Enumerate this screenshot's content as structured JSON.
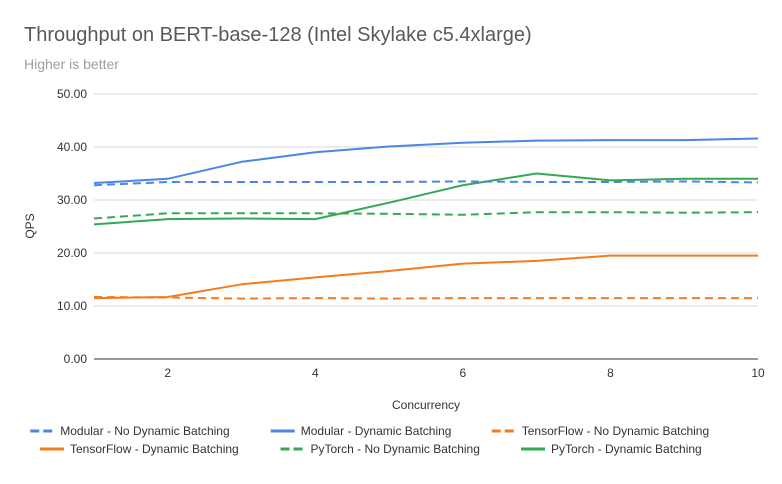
{
  "chart_data": {
    "type": "line",
    "title": "Throughput on BERT-base-128 (Intel Skylake c5.4xlarge)",
    "subtitle": "Higher is better",
    "xlabel": "Concurrency",
    "ylabel": "QPS",
    "x": [
      1,
      2,
      3,
      4,
      5,
      6,
      7,
      8,
      9,
      10
    ],
    "xlim": [
      1,
      10
    ],
    "ylim": [
      0,
      50
    ],
    "x_ticks": [
      2,
      4,
      6,
      8,
      10
    ],
    "y_ticks": [
      "0.00",
      "10.00",
      "20.00",
      "30.00",
      "40.00",
      "50.00"
    ],
    "grid": "horizontal",
    "legend_position": "bottom",
    "series": [
      {
        "name": "Modular - No Dynamic Batching",
        "color": "#4a86e8",
        "dashed": true,
        "values": [
          32.8,
          33.4,
          33.4,
          33.4,
          33.4,
          33.5,
          33.4,
          33.4,
          33.5,
          33.3
        ]
      },
      {
        "name": "Modular - Dynamic Batching",
        "color": "#4a86e8",
        "dashed": false,
        "values": [
          33.2,
          34.0,
          37.2,
          39.0,
          40.1,
          40.8,
          41.2,
          41.3,
          41.3,
          41.6
        ]
      },
      {
        "name": "TensorFlow - No Dynamic Batching",
        "color": "#f57c1e",
        "dashed": true,
        "values": [
          11.7,
          11.6,
          11.4,
          11.5,
          11.4,
          11.5,
          11.5,
          11.5,
          11.5,
          11.5
        ]
      },
      {
        "name": "TensorFlow - Dynamic Batching",
        "color": "#f57c1e",
        "dashed": false,
        "values": [
          11.5,
          11.7,
          14.1,
          15.4,
          16.6,
          18.0,
          18.5,
          19.5,
          19.5,
          19.5
        ]
      },
      {
        "name": "PyTorch - No Dynamic Batching",
        "color": "#34a853",
        "dashed": true,
        "values": [
          26.5,
          27.5,
          27.5,
          27.5,
          27.4,
          27.2,
          27.7,
          27.7,
          27.6,
          27.7
        ]
      },
      {
        "name": "PyTorch - Dynamic Batching",
        "color": "#34a853",
        "dashed": false,
        "values": [
          25.4,
          26.4,
          26.5,
          26.4,
          29.5,
          32.8,
          35.0,
          33.7,
          34.0,
          34.0
        ]
      }
    ]
  }
}
